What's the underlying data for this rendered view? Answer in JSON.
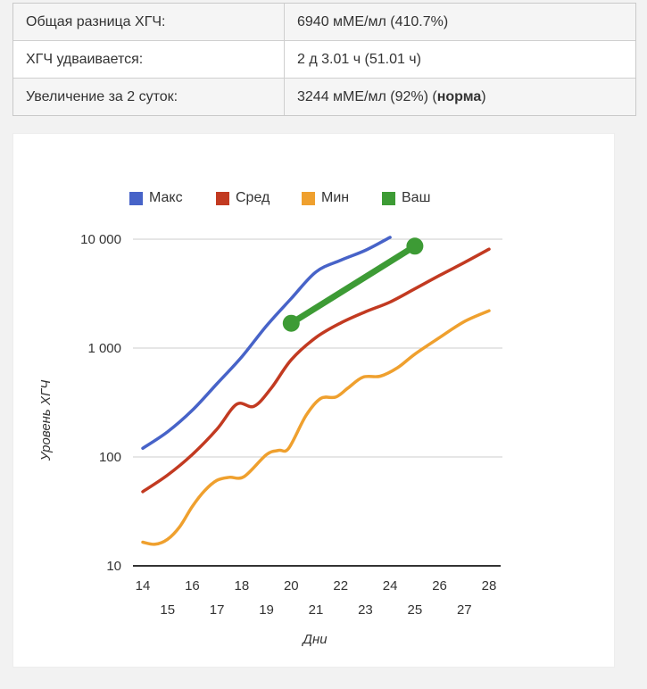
{
  "summary_table": {
    "rows": [
      {
        "label": "Общая разница ХГЧ:",
        "value": "6940 мМЕ/мл (410.7%)",
        "value_bold": "",
        "value_suffix": ""
      },
      {
        "label": "ХГЧ удваивается:",
        "value": "2 д 3.01 ч (51.01 ч)",
        "value_bold": "",
        "value_suffix": ""
      },
      {
        "label": "Увеличение за 2 суток:",
        "value": "3244 мМЕ/мл (92%) (",
        "value_bold": "норма",
        "value_suffix": ")"
      }
    ]
  },
  "chart_data": {
    "type": "line",
    "title": "",
    "xlabel": "Дни",
    "ylabel": "Уровень ХГЧ",
    "y_scale": "log",
    "ylim": [
      10,
      10000
    ],
    "xlim": [
      14,
      28
    ],
    "grid": true,
    "legend_position": "top",
    "x_ticks": [
      14,
      15,
      16,
      17,
      18,
      19,
      20,
      21,
      22,
      23,
      24,
      25,
      26,
      27,
      28
    ],
    "y_ticks": [
      {
        "value": 10000,
        "label": "10 000"
      },
      {
        "value": 1000,
        "label": "1 000"
      },
      {
        "value": 100,
        "label": "100"
      },
      {
        "value": 10,
        "label": "10"
      }
    ],
    "series": [
      {
        "key": "max",
        "name": "Макс",
        "color": "#4763c8",
        "width": 3.5,
        "points": [
          [
            14,
            120
          ],
          [
            15,
            170
          ],
          [
            16,
            268
          ],
          [
            17,
            470
          ],
          [
            18,
            830
          ],
          [
            19,
            1600
          ],
          [
            20,
            2850
          ],
          [
            21,
            5000
          ],
          [
            22,
            6400
          ],
          [
            23,
            7900
          ],
          [
            24,
            10400
          ]
        ]
      },
      {
        "key": "avg",
        "name": "Сред",
        "color": "#c23a21",
        "width": 3.5,
        "points": [
          [
            14,
            48
          ],
          [
            15,
            68
          ],
          [
            16,
            105
          ],
          [
            17,
            180
          ],
          [
            17.8,
            305
          ],
          [
            18.5,
            292
          ],
          [
            19.2,
            430
          ],
          [
            20,
            780
          ],
          [
            21,
            1250
          ],
          [
            22,
            1700
          ],
          [
            23,
            2150
          ],
          [
            24,
            2650
          ],
          [
            25,
            3500
          ],
          [
            26,
            4650
          ],
          [
            27,
            6100
          ],
          [
            28,
            8100
          ]
        ]
      },
      {
        "key": "min",
        "name": "Мин",
        "color": "#efa02e",
        "width": 3.5,
        "points": [
          [
            14,
            16.5
          ],
          [
            14.5,
            15.8
          ],
          [
            15,
            17.5
          ],
          [
            15.5,
            23
          ],
          [
            16,
            35
          ],
          [
            16.5,
            49
          ],
          [
            17,
            61
          ],
          [
            17.5,
            65
          ],
          [
            18.1,
            66
          ],
          [
            19,
            105
          ],
          [
            19.5,
            115
          ],
          [
            19.9,
            120
          ],
          [
            20.6,
            240
          ],
          [
            21.2,
            345
          ],
          [
            21.8,
            355
          ],
          [
            22.3,
            430
          ],
          [
            22.9,
            540
          ],
          [
            23.6,
            552
          ],
          [
            24.3,
            660
          ],
          [
            25,
            880
          ],
          [
            26,
            1250
          ],
          [
            27,
            1750
          ],
          [
            28,
            2200
          ]
        ]
      },
      {
        "key": "your",
        "name": "Ваш",
        "color": "#3d9b35",
        "width": 7,
        "markers": true,
        "marker_radius": 9.5,
        "points": [
          [
            20,
            1690
          ],
          [
            25,
            8630
          ]
        ]
      }
    ],
    "colors": {
      "grid": "#cccccc",
      "axis": "#333333",
      "tick_text": "#333333"
    }
  }
}
